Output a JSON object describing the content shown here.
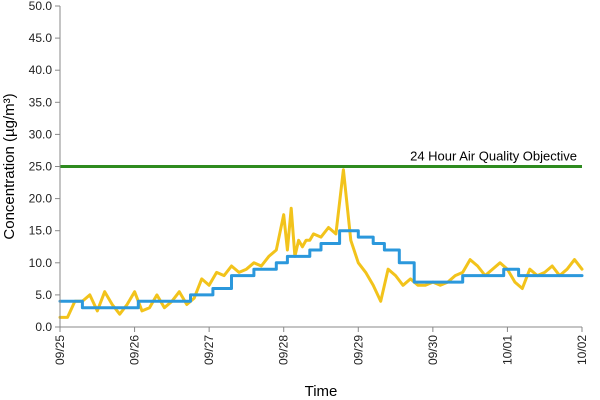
{
  "chart_data": {
    "type": "line",
    "xlabel": "Time",
    "ylabel": "Concentration (µg/m³)",
    "ylim": [
      0,
      50
    ],
    "ytick_labels": [
      "0.0",
      "5.0",
      "10.0",
      "15.0",
      "20.0",
      "25.0",
      "30.0",
      "35.0",
      "40.0",
      "45.0",
      "50.0"
    ],
    "xlim": [
      "09/25",
      "10/02"
    ],
    "xtick_labels": [
      "09/25",
      "09/26",
      "09/27",
      "09/28",
      "09/29",
      "09/30",
      "10/01",
      "10/02"
    ],
    "grid": false,
    "legend": "none",
    "reference_line": {
      "value": 25,
      "label": "24 Hour Air Quality Objective",
      "color": "#2e8b1f"
    },
    "series": [
      {
        "color": "#f2c31b",
        "x": [
          0,
          0.1,
          0.2,
          0.3,
          0.4,
          0.5,
          0.6,
          0.7,
          0.8,
          0.9,
          1.0,
          1.1,
          1.2,
          1.3,
          1.4,
          1.5,
          1.6,
          1.7,
          1.8,
          1.9,
          2.0,
          2.1,
          2.2,
          2.3,
          2.4,
          2.5,
          2.6,
          2.7,
          2.8,
          2.9,
          3.0,
          3.05,
          3.1,
          3.15,
          3.2,
          3.25,
          3.3,
          3.35,
          3.4,
          3.5,
          3.6,
          3.7,
          3.8,
          3.9,
          4.0,
          4.1,
          4.2,
          4.3,
          4.4,
          4.5,
          4.6,
          4.7,
          4.8,
          4.9,
          5.0,
          5.1,
          5.2,
          5.3,
          5.4,
          5.5,
          5.6,
          5.7,
          5.8,
          5.9,
          6.0,
          6.1,
          6.2,
          6.3,
          6.4,
          6.5,
          6.6,
          6.7,
          6.8,
          6.9,
          7.0
        ],
        "values": [
          1.5,
          1.5,
          4.0,
          4.0,
          5.0,
          2.5,
          5.5,
          3.5,
          2.0,
          3.5,
          5.5,
          2.5,
          3.0,
          5.0,
          3.0,
          4.0,
          5.5,
          3.5,
          4.5,
          7.5,
          6.5,
          8.5,
          8.0,
          9.5,
          8.5,
          9.0,
          10.0,
          9.5,
          11.0,
          12.0,
          17.5,
          12.0,
          18.5,
          11.0,
          13.5,
          12.5,
          13.5,
          13.5,
          14.5,
          14.0,
          15.5,
          14.5,
          24.5,
          13.5,
          10.0,
          8.5,
          6.5,
          4.0,
          9.0,
          8.0,
          6.5,
          7.5,
          6.5,
          6.5,
          7.0,
          6.5,
          7.0,
          8.0,
          8.5,
          10.5,
          9.5,
          8.0,
          9.0,
          10.0,
          9.0,
          7.0,
          6.0,
          9.0,
          8.0,
          8.5,
          9.5,
          8.0,
          9.0,
          10.5,
          9.0
        ]
      },
      {
        "color": "#2b98dc",
        "x": [
          0,
          0.3,
          0.3,
          0.7,
          0.7,
          1.05,
          1.05,
          1.75,
          1.75,
          2.05,
          2.05,
          2.3,
          2.3,
          2.6,
          2.6,
          2.9,
          2.9,
          3.05,
          3.05,
          3.35,
          3.35,
          3.5,
          3.5,
          3.75,
          3.75,
          4.0,
          4.0,
          4.2,
          4.2,
          4.35,
          4.35,
          4.55,
          4.55,
          4.75,
          4.75,
          5.4,
          5.4,
          5.95,
          5.95,
          6.15,
          6.15,
          7.0
        ],
        "values": [
          4,
          4,
          3,
          3,
          3,
          3,
          4,
          4,
          5,
          5,
          6,
          6,
          8,
          8,
          9,
          9,
          10,
          10,
          11,
          11,
          12,
          12,
          13,
          13,
          15,
          15,
          14,
          14,
          13,
          13,
          12,
          12,
          10,
          10,
          7,
          7,
          8,
          8,
          9,
          9,
          8,
          8
        ]
      }
    ]
  }
}
